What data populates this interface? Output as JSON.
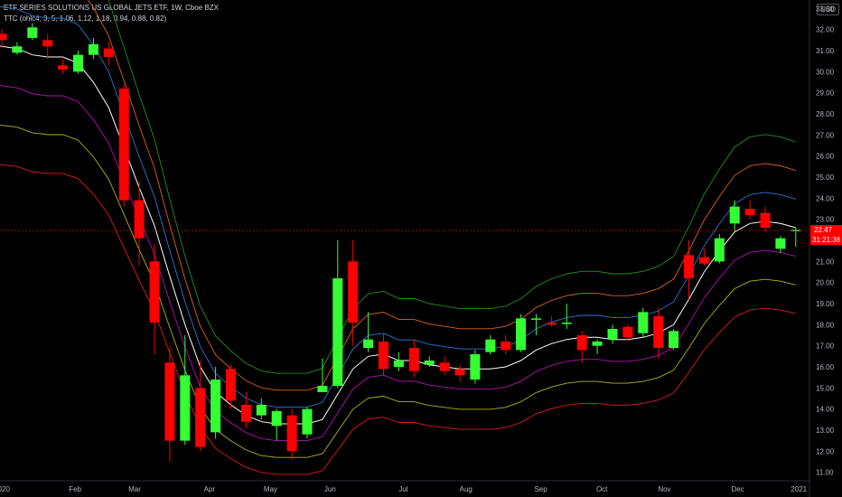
{
  "header": {
    "title": "ETF SERIES SOLUTIONS US GLOBAL JETS ETF, 1W, Cboe BZX",
    "indicator": "TTC (ohlc4, 3, 5, 1.06, 1.12, 1.18, 0.94, 0.88, 0.82)"
  },
  "currency": "USD",
  "price_tag": {
    "value": "22.47",
    "countdown": "31:21:36"
  },
  "colors": {
    "up": "#33ff33",
    "down": "#ff0000",
    "bands": [
      "#1f8f1f",
      "#e0611a",
      "#2a78d6",
      "#ffffff",
      "#b30fb3",
      "#b3b31a",
      "#e01a1a"
    ]
  },
  "chart_data": {
    "type": "candlestick",
    "y_axis_ticks": [
      "33.00",
      "32.00",
      "31.00",
      "30.00",
      "29.00",
      "28.00",
      "27.00",
      "26.00",
      "25.00",
      "24.00",
      "23.00",
      "22.00",
      "21.00",
      "20.00",
      "19.00",
      "18.00",
      "17.00",
      "16.00",
      "15.00",
      "14.00",
      "13.00",
      "12.00",
      "11.00"
    ],
    "y_range": [
      10.6,
      33.4
    ],
    "x_axis_labels": [
      "2020",
      "Feb",
      "Mar",
      "Apr",
      "May",
      "Jun",
      "Jul",
      "Aug",
      "Sep",
      "Oct",
      "Nov",
      "Dec",
      "2021"
    ],
    "x_label_weeks": [
      0,
      4.8,
      8.7,
      13.6,
      17.6,
      21.5,
      26.3,
      30.4,
      35.3,
      39.3,
      43.4,
      48.2,
      52.2
    ],
    "last_price": 22.47,
    "candles": [
      {
        "o": 31.8,
        "h": 32.0,
        "l": 31.1,
        "c": 31.5
      },
      {
        "o": 30.9,
        "h": 31.4,
        "l": 30.8,
        "c": 31.2
      },
      {
        "o": 31.6,
        "h": 32.3,
        "l": 31.5,
        "c": 32.1
      },
      {
        "o": 31.5,
        "h": 31.8,
        "l": 30.6,
        "c": 31.2
      },
      {
        "o": 30.3,
        "h": 30.6,
        "l": 29.9,
        "c": 30.1
      },
      {
        "o": 30.0,
        "h": 31.0,
        "l": 29.9,
        "c": 30.8
      },
      {
        "o": 30.8,
        "h": 31.6,
        "l": 30.6,
        "c": 31.3
      },
      {
        "o": 31.1,
        "h": 31.4,
        "l": 30.3,
        "c": 30.7
      },
      {
        "o": 29.2,
        "h": 29.4,
        "l": 23.6,
        "c": 23.9
      },
      {
        "o": 23.9,
        "h": 24.8,
        "l": 20.8,
        "c": 22.1
      },
      {
        "o": 21.0,
        "h": 21.8,
        "l": 16.6,
        "c": 18.1
      },
      {
        "o": 16.2,
        "h": 17.0,
        "l": 11.5,
        "c": 12.5
      },
      {
        "o": 12.5,
        "h": 17.5,
        "l": 12.3,
        "c": 15.6
      },
      {
        "o": 15.0,
        "h": 16.3,
        "l": 12.0,
        "c": 12.2
      },
      {
        "o": 12.9,
        "h": 16.0,
        "l": 12.6,
        "c": 15.4
      },
      {
        "o": 15.9,
        "h": 16.1,
        "l": 14.0,
        "c": 14.4
      },
      {
        "o": 14.2,
        "h": 14.8,
        "l": 13.1,
        "c": 13.4
      },
      {
        "o": 13.7,
        "h": 14.5,
        "l": 13.5,
        "c": 14.2
      },
      {
        "o": 13.2,
        "h": 14.0,
        "l": 12.5,
        "c": 13.9
      },
      {
        "o": 13.7,
        "h": 14.0,
        "l": 11.6,
        "c": 12.0
      },
      {
        "o": 12.8,
        "h": 14.1,
        "l": 12.6,
        "c": 14.0
      },
      {
        "o": 14.8,
        "h": 16.4,
        "l": 14.8,
        "c": 15.1
      },
      {
        "o": 15.1,
        "h": 22.0,
        "l": 15.0,
        "c": 20.2
      },
      {
        "o": 21.0,
        "h": 22.0,
        "l": 17.0,
        "c": 18.1
      },
      {
        "o": 16.9,
        "h": 18.6,
        "l": 16.7,
        "c": 17.3
      },
      {
        "o": 17.2,
        "h": 17.6,
        "l": 15.6,
        "c": 15.9
      },
      {
        "o": 16.0,
        "h": 16.7,
        "l": 15.8,
        "c": 16.3
      },
      {
        "o": 16.9,
        "h": 17.3,
        "l": 15.5,
        "c": 15.8
      },
      {
        "o": 16.1,
        "h": 16.5,
        "l": 16.0,
        "c": 16.3
      },
      {
        "o": 16.2,
        "h": 16.5,
        "l": 15.6,
        "c": 15.8
      },
      {
        "o": 15.9,
        "h": 16.1,
        "l": 15.3,
        "c": 15.6
      },
      {
        "o": 15.4,
        "h": 16.8,
        "l": 15.2,
        "c": 16.6
      },
      {
        "o": 16.7,
        "h": 17.5,
        "l": 16.6,
        "c": 17.3
      },
      {
        "o": 17.2,
        "h": 17.5,
        "l": 16.6,
        "c": 16.8
      },
      {
        "o": 16.8,
        "h": 18.5,
        "l": 16.7,
        "c": 18.3
      },
      {
        "o": 18.3,
        "h": 18.5,
        "l": 17.5,
        "c": 18.3
      },
      {
        "o": 18.1,
        "h": 18.4,
        "l": 17.9,
        "c": 18.0
      },
      {
        "o": 18.1,
        "h": 19.0,
        "l": 17.8,
        "c": 18.1
      },
      {
        "o": 17.5,
        "h": 17.7,
        "l": 16.2,
        "c": 16.8
      },
      {
        "o": 17.0,
        "h": 17.3,
        "l": 16.6,
        "c": 17.2
      },
      {
        "o": 17.3,
        "h": 18.0,
        "l": 17.1,
        "c": 17.8
      },
      {
        "o": 17.9,
        "h": 18.0,
        "l": 17.2,
        "c": 17.4
      },
      {
        "o": 17.6,
        "h": 18.8,
        "l": 17.4,
        "c": 18.6
      },
      {
        "o": 18.4,
        "h": 18.8,
        "l": 16.4,
        "c": 16.9
      },
      {
        "o": 16.9,
        "h": 17.8,
        "l": 16.8,
        "c": 17.7
      },
      {
        "o": 21.3,
        "h": 22.0,
        "l": 19.2,
        "c": 20.2
      },
      {
        "o": 21.2,
        "h": 21.6,
        "l": 20.8,
        "c": 20.9
      },
      {
        "o": 21.0,
        "h": 22.3,
        "l": 20.9,
        "c": 22.1
      },
      {
        "o": 22.8,
        "h": 23.9,
        "l": 22.4,
        "c": 23.6
      },
      {
        "o": 23.5,
        "h": 23.9,
        "l": 23.0,
        "c": 23.2
      },
      {
        "o": 23.3,
        "h": 23.6,
        "l": 22.4,
        "c": 22.6
      },
      {
        "o": 21.6,
        "h": 22.2,
        "l": 21.4,
        "c": 22.1
      },
      {
        "o": 22.5,
        "h": 22.6,
        "l": 21.7,
        "c": 22.5
      }
    ],
    "bands": [
      {
        "factor": 1.18,
        "color": "#1f8f1f"
      },
      {
        "factor": 1.12,
        "color": "#e0611a"
      },
      {
        "factor": 1.06,
        "color": "#2a78d6"
      },
      {
        "factor": 1.0,
        "color": "#ffffff"
      },
      {
        "factor": 0.94,
        "color": "#b30fb3"
      },
      {
        "factor": 0.88,
        "color": "#b3b31a"
      },
      {
        "factor": 0.82,
        "color": "#e01a1a"
      }
    ],
    "basis": [
      31.4,
      31.4,
      31.3,
      31.3,
      31.2,
      31.1,
      30.8,
      30.7,
      30.7,
      30.4,
      29.5,
      28.3,
      26.4,
      24.5,
      22.7,
      20.3,
      18.0,
      16.0,
      14.8,
      14.2,
      13.7,
      13.4,
      13.3,
      13.3,
      13.3,
      13.5,
      14.7,
      15.9,
      16.5,
      16.6,
      16.3,
      16.3,
      16.1,
      16.0,
      15.9,
      15.9,
      15.9,
      16.0,
      16.3,
      16.8,
      17.1,
      17.3,
      17.4,
      17.4,
      17.3,
      17.3,
      17.4,
      17.6,
      18.0,
      19.2,
      20.5,
      21.5,
      22.4,
      22.8,
      22.9,
      22.8,
      22.6
    ],
    "basis_start_week": -4
  }
}
